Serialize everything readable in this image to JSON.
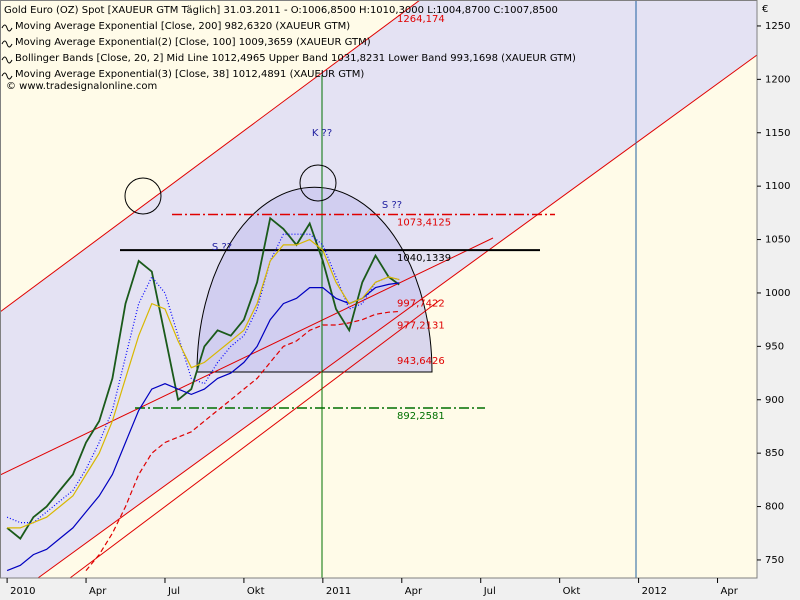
{
  "chart_data": {
    "type": "line",
    "y_label": "€",
    "source": "© www.tradesignalonline.com",
    "x": [
      0,
      0.5,
      1,
      1.5,
      2,
      2.5,
      3,
      3.5,
      4,
      4.5,
      5,
      5.5,
      6,
      6.5,
      7,
      7.5,
      8,
      8.5,
      9,
      9.5,
      10,
      10.5,
      11,
      11.5,
      12,
      12.5,
      13,
      13.5,
      14,
      14.5,
      14.9
    ],
    "xlim": [
      -0.27,
      28.5
    ],
    "xticks": [
      {
        "value": 0,
        "label": "2010"
      },
      {
        "value": 3,
        "label": "Apr"
      },
      {
        "value": 6,
        "label": "Jul"
      },
      {
        "value": 9,
        "label": "Okt"
      },
      {
        "value": 12,
        "label": "2011"
      },
      {
        "value": 15,
        "label": "Apr"
      },
      {
        "value": 18,
        "label": "Jul"
      },
      {
        "value": 21,
        "label": "Okt"
      },
      {
        "value": 24,
        "label": "2012"
      },
      {
        "value": 27,
        "label": "Apr"
      }
    ],
    "ylim": [
      733.1,
      1274.3
    ],
    "yticks": [
      750,
      800,
      850,
      900,
      950,
      1000,
      1050,
      1100,
      1150,
      1200,
      1250
    ],
    "series": [
      {
        "name": "Gold Euro (OZ) Spot [XAUEUR GTM  Täglich] 31.03.2011 - O:1006,8500 H:1010,3000 L:1004,8700 C:1007,8500",
        "color": "#1a5a1a",
        "style": "solid",
        "values": [
          780,
          770,
          790,
          800,
          815,
          830,
          860,
          880,
          920,
          990,
          1030,
          1020,
          960,
          900,
          910,
          950,
          965,
          960,
          975,
          1010,
          1070,
          1060,
          1045,
          1065,
          1030,
          985,
          965,
          1010,
          1035,
          1015,
          1007.85
        ]
      },
      {
        "name": "Moving Average Exponential [Close, 200] 982,6320 (XAUEUR GTM)",
        "color": "#e00000",
        "style": "dashed",
        "values": [
          null,
          null,
          null,
          null,
          null,
          null,
          740,
          755,
          775,
          800,
          830,
          850,
          860,
          865,
          870,
          880,
          890,
          900,
          910,
          920,
          935,
          950,
          955,
          965,
          970,
          970,
          972,
          975,
          980,
          982,
          982.632
        ]
      },
      {
        "name": "Moving Average Exponential(2) [Close, 100] 1009,3659 (XAUEUR GTM)",
        "color": "#0000c0",
        "style": "solid",
        "values": [
          740,
          745,
          755,
          760,
          770,
          780,
          795,
          810,
          830,
          860,
          890,
          910,
          915,
          910,
          905,
          910,
          920,
          925,
          935,
          950,
          975,
          990,
          995,
          1005,
          1005,
          995,
          990,
          995,
          1005,
          1008,
          1009.3659
        ]
      },
      {
        "name": "Bollinger Bands [Close, 20, 2] Mid Line 1012,4965 Upper Band 1031,8231 Lower Band 993,1698 (XAUEUR GTM)",
        "color": "#0000ff",
        "style": "dotted",
        "values": [
          790,
          785,
          785,
          795,
          805,
          815,
          835,
          860,
          890,
          940,
          990,
          1015,
          1000,
          960,
          920,
          915,
          935,
          950,
          960,
          985,
          1030,
          1055,
          1055,
          1055,
          1045,
          1015,
          985,
          990,
          1010,
          1015,
          1012.4965
        ]
      },
      {
        "name": "Moving Average Exponential(3) [Close, 38] 1012,4891 (XAUEUR GTM)",
        "color": "#d8b800",
        "style": "solid",
        "values": [
          780,
          780,
          785,
          790,
          800,
          810,
          830,
          850,
          880,
          920,
          960,
          990,
          985,
          955,
          930,
          935,
          945,
          955,
          965,
          990,
          1030,
          1045,
          1045,
          1050,
          1040,
          1010,
          990,
          995,
          1010,
          1015,
          1012.4891
        ]
      }
    ],
    "levels": {
      "values": [
        1264.174,
        1073.4125,
        1040.1339,
        997.7422,
        977.2131,
        943.6426,
        892.2581
      ],
      "value_labels": [
        "1264,174",
        "1073,4125",
        "1040,1339",
        "997,7422",
        "977,2131",
        "943,6426",
        "892,2581"
      ],
      "colors": [
        "#e00000",
        "#e00000",
        "#000000",
        "#e00000",
        "#e00000",
        "#e00000",
        "#007000"
      ]
    },
    "annotations": [
      "K ??",
      "S ??",
      "S ??"
    ]
  }
}
